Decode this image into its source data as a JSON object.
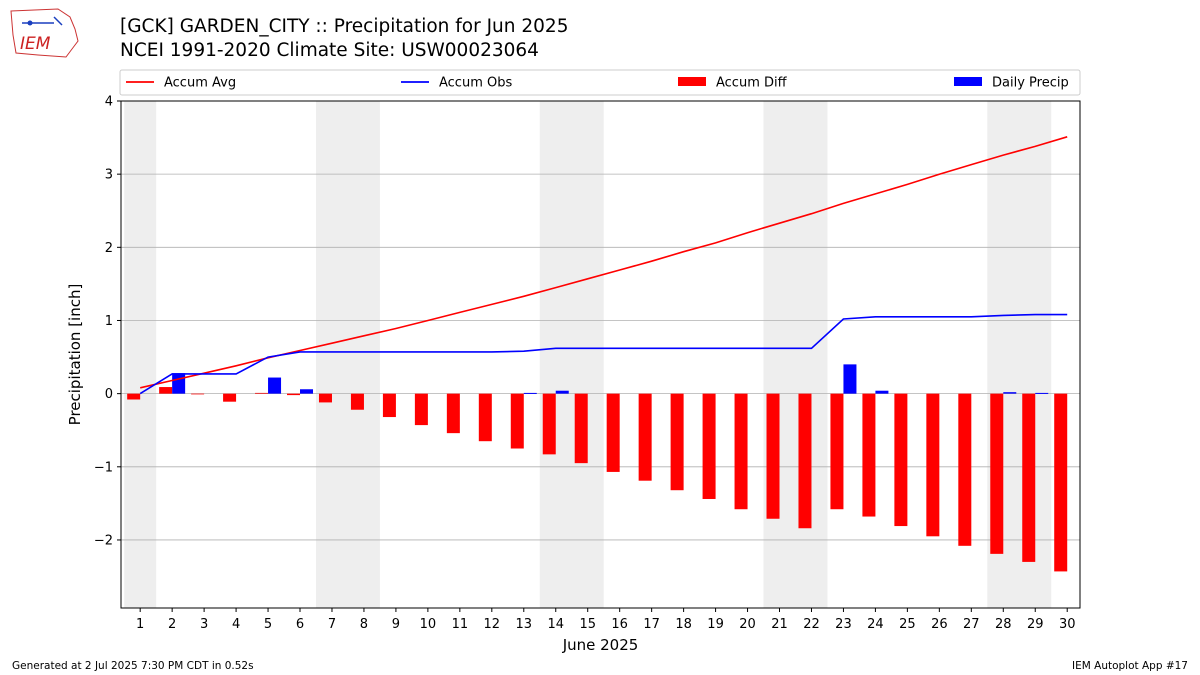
{
  "logo_text": "IEM",
  "title_line1": "[GCK] GARDEN_CITY :: Precipitation for Jun 2025",
  "title_line2": "NCEI 1991-2020 Climate Site: USW00023064",
  "footer_left": "Generated at 2 Jul 2025 7:30 PM CDT in 0.52s",
  "footer_right": "IEM Autoplot App #17",
  "colors": {
    "accum_avg": "#ff0000",
    "accum_obs": "#0000ff",
    "accum_diff": "#ff0000",
    "daily_precip": "#0000ff",
    "weekend_shade": "#eeeeee",
    "grid": "#b0b0b0"
  },
  "chart_data": {
    "type": "bar",
    "title": "[GCK] GARDEN_CITY :: Precipitation for Jun 2025",
    "subtitle": "NCEI 1991-2020 Climate Site: USW00023064",
    "xlabel": "June 2025",
    "ylabel": "Precipitation [inch]",
    "ylim": [
      -2.93,
      4
    ],
    "yticks": [
      -2,
      -1,
      0,
      1,
      2,
      3,
      4
    ],
    "ytick_labels": [
      "−2",
      "−1",
      "0",
      "1",
      "2",
      "3",
      "4"
    ],
    "grid": "horizontal",
    "legend_position": "top",
    "categories": [
      "1",
      "2",
      "3",
      "4",
      "5",
      "6",
      "7",
      "8",
      "9",
      "10",
      "11",
      "12",
      "13",
      "14",
      "15",
      "16",
      "17",
      "18",
      "19",
      "20",
      "21",
      "22",
      "23",
      "24",
      "25",
      "26",
      "27",
      "28",
      "29",
      "30"
    ],
    "shaded_days": [
      [
        1,
        1
      ],
      [
        7,
        8
      ],
      [
        14,
        15
      ],
      [
        21,
        22
      ],
      [
        28,
        29
      ]
    ],
    "series": [
      {
        "name": "Accum Avg",
        "kind": "line",
        "values": [
          0.08,
          0.18,
          0.28,
          0.38,
          0.49,
          0.59,
          0.69,
          0.79,
          0.89,
          1.0,
          1.11,
          1.22,
          1.33,
          1.45,
          1.57,
          1.69,
          1.81,
          1.94,
          2.06,
          2.2,
          2.33,
          2.46,
          2.6,
          2.73,
          2.86,
          3.0,
          3.13,
          3.26,
          3.38,
          3.51
        ]
      },
      {
        "name": "Accum Obs",
        "kind": "line",
        "values": [
          0.0,
          0.27,
          0.27,
          0.27,
          0.5,
          0.57,
          0.57,
          0.57,
          0.57,
          0.57,
          0.57,
          0.57,
          0.58,
          0.62,
          0.62,
          0.62,
          0.62,
          0.62,
          0.62,
          0.62,
          0.62,
          0.62,
          1.02,
          1.05,
          1.05,
          1.05,
          1.05,
          1.07,
          1.08,
          1.08
        ]
      },
      {
        "name": "Accum Diff",
        "kind": "bar",
        "values": [
          -0.08,
          0.09,
          -0.01,
          -0.11,
          0.01,
          -0.02,
          -0.12,
          -0.22,
          -0.32,
          -0.43,
          -0.54,
          -0.65,
          -0.75,
          -0.83,
          -0.95,
          -1.07,
          -1.19,
          -1.32,
          -1.44,
          -1.58,
          -1.71,
          -1.84,
          -1.58,
          -1.68,
          -1.81,
          -1.95,
          -2.08,
          -2.19,
          -2.3,
          -2.43
        ]
      },
      {
        "name": "Daily Precip",
        "kind": "bar",
        "values": [
          0.0,
          0.28,
          0.0,
          0.0,
          0.22,
          0.06,
          0.0,
          0.0,
          0.0,
          0.0,
          0.0,
          0.0,
          0.01,
          0.04,
          0.0,
          0.0,
          0.0,
          0.0,
          0.0,
          0.0,
          0.0,
          0.0,
          0.4,
          0.04,
          0.0,
          0.0,
          0.0,
          0.02,
          0.01,
          0.0
        ]
      }
    ]
  }
}
